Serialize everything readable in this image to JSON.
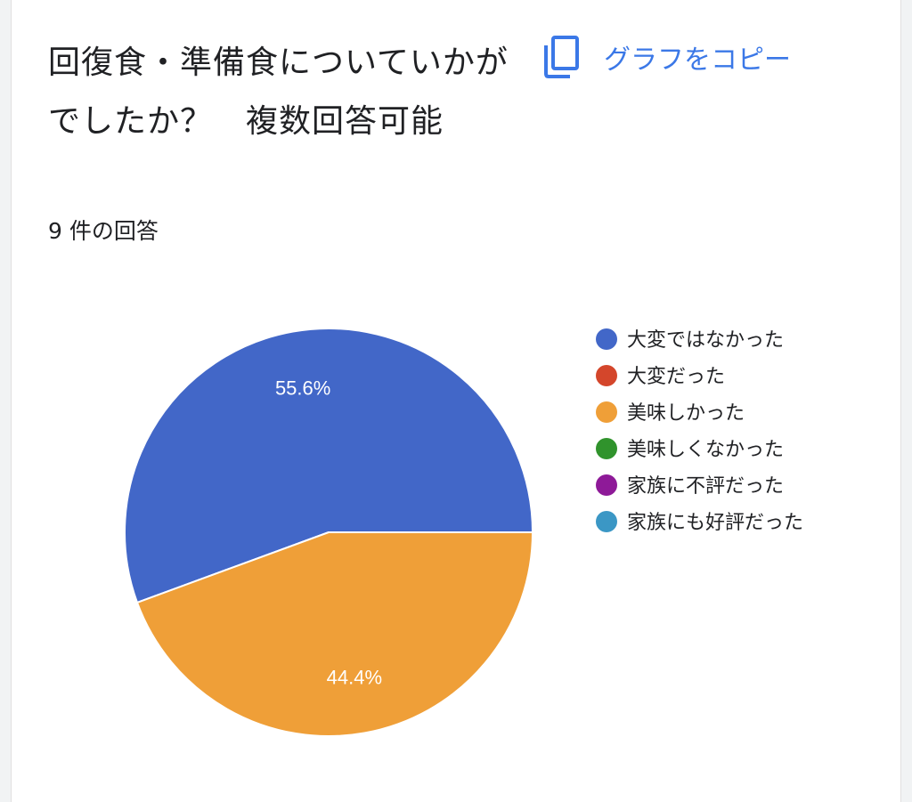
{
  "question": {
    "title": "回復食・準備食についていかがでしたか？　複数回答可能",
    "response_count": "9 件の回答"
  },
  "toolbar": {
    "copy_label": "グラフをコピー",
    "copy_icon": "copy-icon"
  },
  "chart_data": {
    "type": "pie",
    "title": "",
    "slices": [
      {
        "label": "大変ではなかった",
        "value": 55.6,
        "color": "#4267c8",
        "display": "55.6%"
      },
      {
        "label": "大変だった",
        "value": 0,
        "color": "#d4462b",
        "display": ""
      },
      {
        "label": "美味しかった",
        "value": 44.4,
        "color": "#ef9f38",
        "display": "44.4%"
      },
      {
        "label": "美味しくなかった",
        "value": 0,
        "color": "#30932c",
        "display": ""
      },
      {
        "label": "家族に不評だった",
        "value": 0,
        "color": "#8e1a98",
        "display": ""
      },
      {
        "label": "家族にも好評だった",
        "value": 0,
        "color": "#3b97c5",
        "display": ""
      }
    ],
    "legend_position": "right"
  }
}
